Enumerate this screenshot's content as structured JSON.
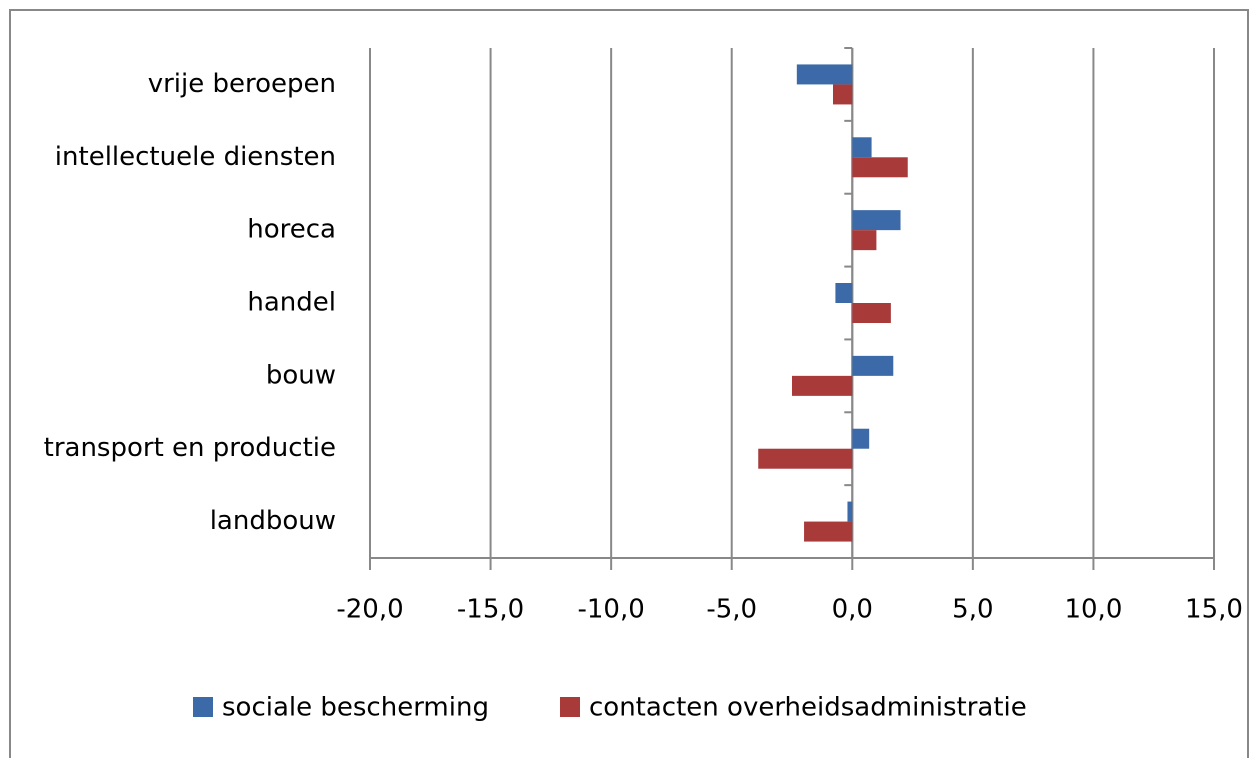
{
  "chart_data": {
    "type": "barh",
    "categories": [
      "vrije beroepen",
      "intellectuele diensten",
      "horeca",
      "handel",
      "bouw",
      "transport en productie",
      "landbouw"
    ],
    "series": [
      {
        "name": "sociale bescherming",
        "color": "#3c6aa8",
        "values": [
          -2.3,
          0.8,
          2.0,
          -0.7,
          1.7,
          0.7,
          -0.2
        ]
      },
      {
        "name": "contacten overheidsadministratie",
        "color": "#a83a3a",
        "values": [
          -0.8,
          2.3,
          1.0,
          1.6,
          -2.5,
          -3.9,
          -2.0
        ]
      }
    ],
    "xlim": [
      -20,
      15
    ],
    "xticks": [
      {
        "value": -20,
        "label": "-20,0"
      },
      {
        "value": -15,
        "label": "-15,0"
      },
      {
        "value": -10,
        "label": "-10,0"
      },
      {
        "value": -5,
        "label": "-5,0"
      },
      {
        "value": 0,
        "label": "0,0"
      },
      {
        "value": 5,
        "label": "5,0"
      },
      {
        "value": 10,
        "label": "10,0"
      },
      {
        "value": 15,
        "label": "15,0"
      }
    ],
    "grid": true,
    "legend": "bottom"
  }
}
